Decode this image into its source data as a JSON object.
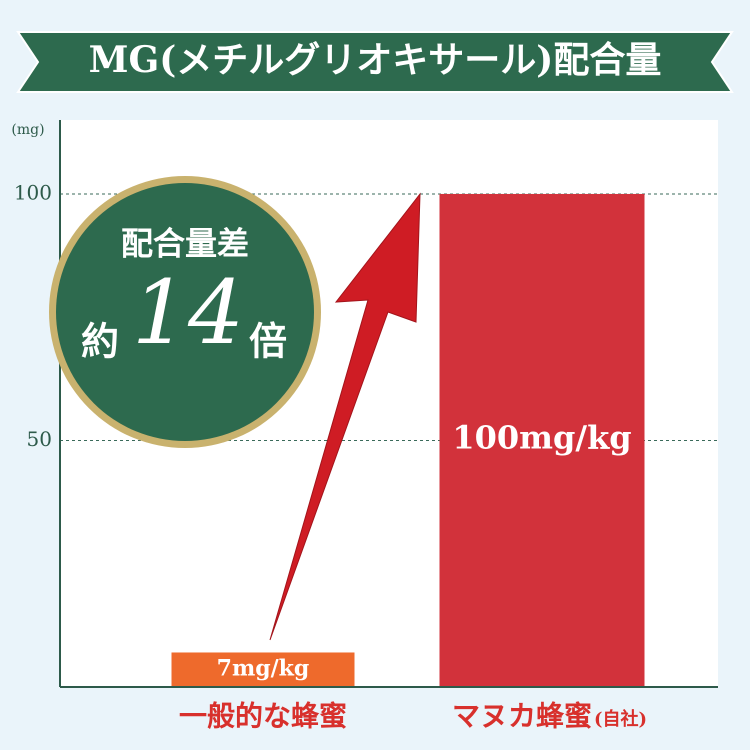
{
  "chart_data": {
    "type": "bar",
    "title": "MG(メチルグリオキサール)配合量",
    "y_unit": "(mg)",
    "categories": [
      "一般的な蜂蜜",
      "マヌカ蜂蜜"
    ],
    "category_notes": [
      null,
      "(自社)"
    ],
    "values": [
      7,
      100
    ],
    "value_labels": [
      "7mg/kg",
      "100mg/kg"
    ],
    "colors": [
      "#ee6a2c",
      "#d2323b"
    ],
    "ylim": [
      0,
      115
    ],
    "yticks": [
      50,
      100
    ],
    "grid": true,
    "annotation": {
      "heading": "配合量差",
      "prefix": "約",
      "value": 14,
      "suffix": "倍"
    }
  }
}
